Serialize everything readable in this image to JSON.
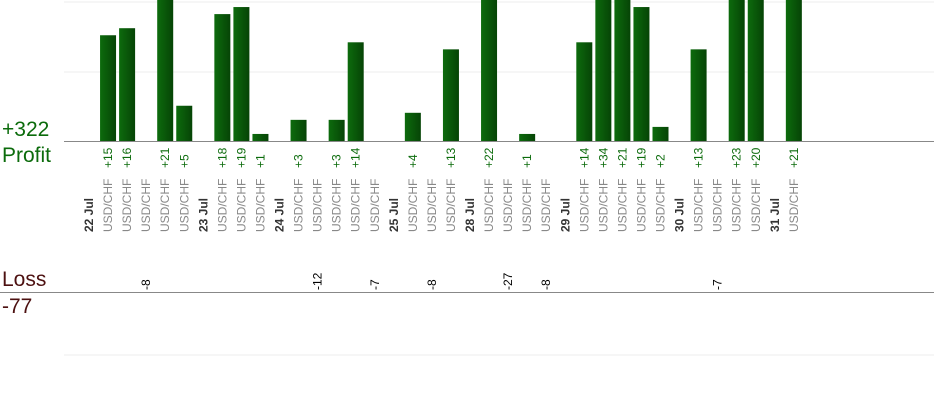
{
  "chart_data": {
    "type": "bar",
    "labels": {
      "profit_total": "+322",
      "profit": "Profit",
      "loss": "Loss",
      "loss_total": "-77"
    },
    "colors": {
      "profit_bar": "#0d6b0d",
      "profit_bar_dark": "#064406",
      "loss_bar": "#ffb3b3",
      "loss_border": "#e07a7a",
      "profit_text": "#0b6b0b",
      "loss_text": "#4d1111",
      "axis": "#888888",
      "grid": "#eeeeee",
      "tick_text": "#888888",
      "date_text": "#333333"
    },
    "grid": true,
    "profit_ylim": [
      0,
      20
    ],
    "loss_ylim": [
      -27,
      0
    ],
    "slots": [
      {
        "kind": "date",
        "label": "22 Jul"
      },
      {
        "kind": "trade",
        "label": "USD/CHF",
        "value": 15,
        "value_label": "+15"
      },
      {
        "kind": "trade",
        "label": "USD/CHF",
        "value": 16,
        "value_label": "+16"
      },
      {
        "kind": "trade",
        "label": "USD/CHF",
        "value": -8,
        "value_label": "-8"
      },
      {
        "kind": "trade",
        "label": "USD/CHF",
        "value": 21,
        "value_label": "+21"
      },
      {
        "kind": "trade",
        "label": "USD/CHF",
        "value": 5,
        "value_label": "+5"
      },
      {
        "kind": "date",
        "label": "23 Jul"
      },
      {
        "kind": "trade",
        "label": "USD/CHF",
        "value": 18,
        "value_label": "+18"
      },
      {
        "kind": "trade",
        "label": "USD/CHF",
        "value": 19,
        "value_label": "+19"
      },
      {
        "kind": "trade",
        "label": "USD/CHF",
        "value": 1,
        "value_label": "+1"
      },
      {
        "kind": "date",
        "label": "24 Jul"
      },
      {
        "kind": "trade",
        "label": "USD/CHF",
        "value": 3,
        "value_label": "+3"
      },
      {
        "kind": "trade",
        "label": "USD/CHF",
        "value": -12,
        "value_label": "-12"
      },
      {
        "kind": "trade",
        "label": "USD/CHF",
        "value": 3,
        "value_label": "+3"
      },
      {
        "kind": "trade",
        "label": "USD/CHF",
        "value": 14,
        "value_label": "+14"
      },
      {
        "kind": "trade",
        "label": "USD/CHF",
        "value": -7,
        "value_label": "-7"
      },
      {
        "kind": "date",
        "label": "25 Jul"
      },
      {
        "kind": "trade",
        "label": "USD/CHF",
        "value": 4,
        "value_label": "+4"
      },
      {
        "kind": "trade",
        "label": "USD/CHF",
        "value": -8,
        "value_label": "-8"
      },
      {
        "kind": "trade",
        "label": "USD/CHF",
        "value": 13,
        "value_label": "+13"
      },
      {
        "kind": "date",
        "label": "28 Jul"
      },
      {
        "kind": "trade",
        "label": "USD/CHF",
        "value": 22,
        "value_label": "+22"
      },
      {
        "kind": "trade",
        "label": "USD/CHF",
        "value": -27,
        "value_label": "-27"
      },
      {
        "kind": "trade",
        "label": "USD/CHF",
        "value": 1,
        "value_label": "+1"
      },
      {
        "kind": "trade",
        "label": "USD/CHF",
        "value": -8,
        "value_label": "-8"
      },
      {
        "kind": "date",
        "label": "29 Jul"
      },
      {
        "kind": "trade",
        "label": "USD/CHF",
        "value": 14,
        "value_label": "+14"
      },
      {
        "kind": "trade",
        "label": "USD/CHF",
        "value": 34,
        "value_label": "+34"
      },
      {
        "kind": "trade",
        "label": "USD/CHF",
        "value": 21,
        "value_label": "+21"
      },
      {
        "kind": "trade",
        "label": "USD/CHF",
        "value": 19,
        "value_label": "+19"
      },
      {
        "kind": "trade",
        "label": "USD/CHF",
        "value": 2,
        "value_label": "+2"
      },
      {
        "kind": "date",
        "label": "30 Jul"
      },
      {
        "kind": "trade",
        "label": "USD/CHF",
        "value": 13,
        "value_label": "+13"
      },
      {
        "kind": "trade",
        "label": "USD/CHF",
        "value": -7,
        "value_label": "-7"
      },
      {
        "kind": "trade",
        "label": "USD/CHF",
        "value": 23,
        "value_label": "+23"
      },
      {
        "kind": "trade",
        "label": "USD/CHF",
        "value": 20,
        "value_label": "+20"
      },
      {
        "kind": "date",
        "label": "31 Jul"
      },
      {
        "kind": "trade",
        "label": "USD/CHF",
        "value": 21,
        "value_label": "+21"
      }
    ]
  }
}
